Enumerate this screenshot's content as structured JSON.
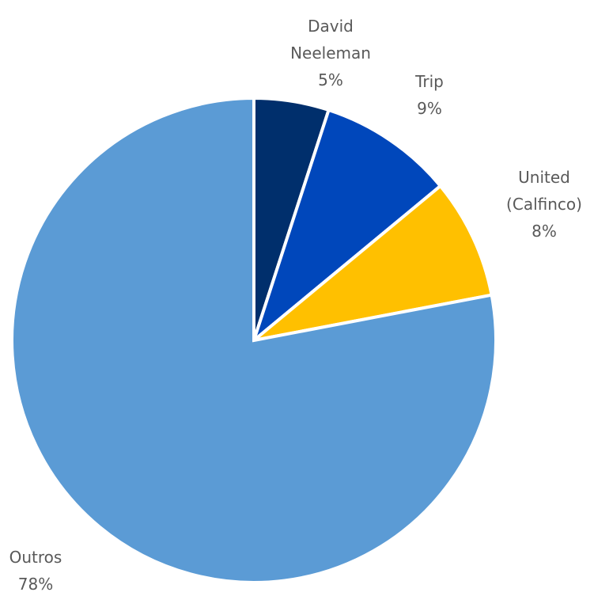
{
  "chart_data": {
    "type": "pie",
    "start_angle_deg": 0,
    "direction": "clockwise",
    "slices": [
      {
        "id": "david",
        "lines": [
          "David",
          "Neeleman",
          "5%"
        ],
        "value": 5,
        "color": "#002F6C"
      },
      {
        "id": "trip",
        "lines": [
          "Trip",
          "9%"
        ],
        "value": 9,
        "color": "#0047BB"
      },
      {
        "id": "united",
        "lines": [
          "United",
          "(Calfinco)",
          "8%"
        ],
        "value": 8,
        "color": "#FFC000"
      },
      {
        "id": "outros",
        "lines": [
          "Outros",
          "78%"
        ],
        "value": 78,
        "color": "#5B9BD5"
      }
    ]
  }
}
